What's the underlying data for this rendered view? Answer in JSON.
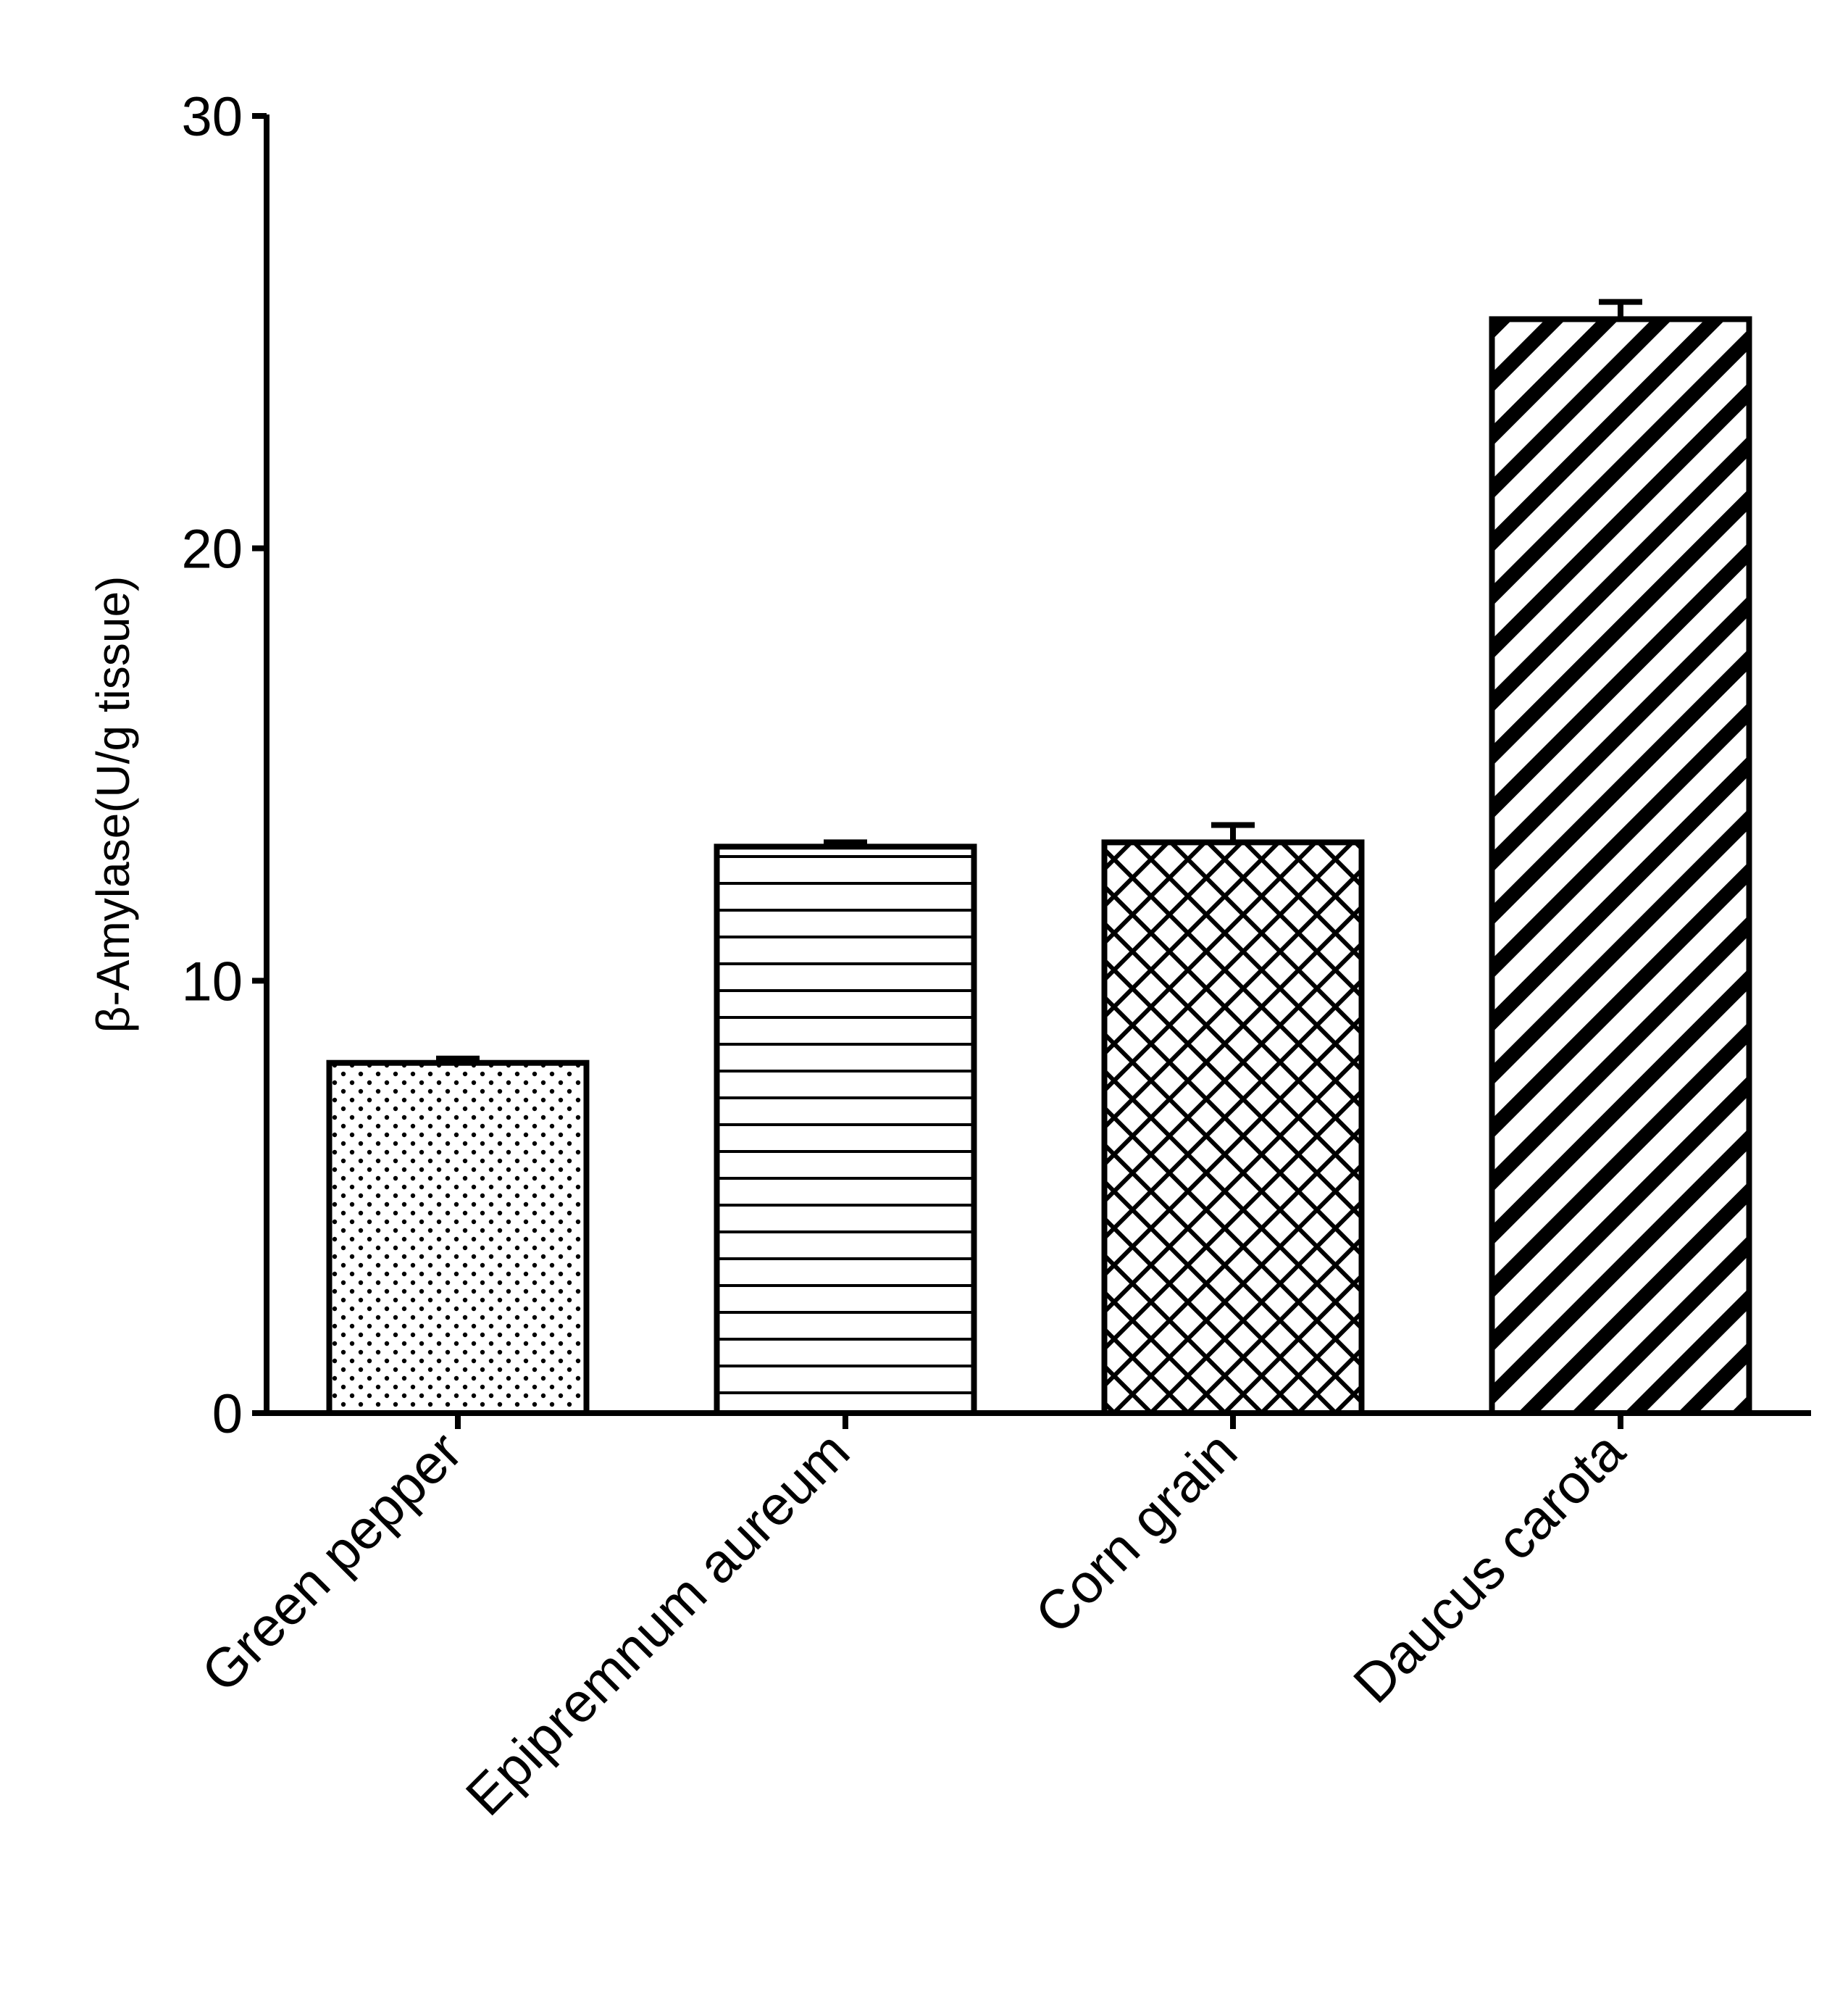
{
  "chart_data": {
    "type": "bar",
    "title": "",
    "xlabel": "",
    "ylabel": "β-Amylase(U/g tissue)",
    "ylim": [
      0,
      30
    ],
    "yticks": [
      0,
      10,
      20,
      30
    ],
    "ytick_labels": [
      "0",
      "10",
      "20",
      "30"
    ],
    "grid": false,
    "legend": "none",
    "categories": [
      "Green pepper",
      "Epipremnum aureum",
      "Corn grain",
      "Daucus carota"
    ],
    "values": [
      8.1,
      13.1,
      13.2,
      25.3
    ],
    "errors": [
      0.1,
      0.1,
      0.4,
      0.4
    ],
    "patterns": [
      "dots",
      "horizontal-lines",
      "crosshatch",
      "diagonal-stripes"
    ],
    "colors": {
      "stroke": "#000000",
      "fill": "#ffffff"
    }
  }
}
